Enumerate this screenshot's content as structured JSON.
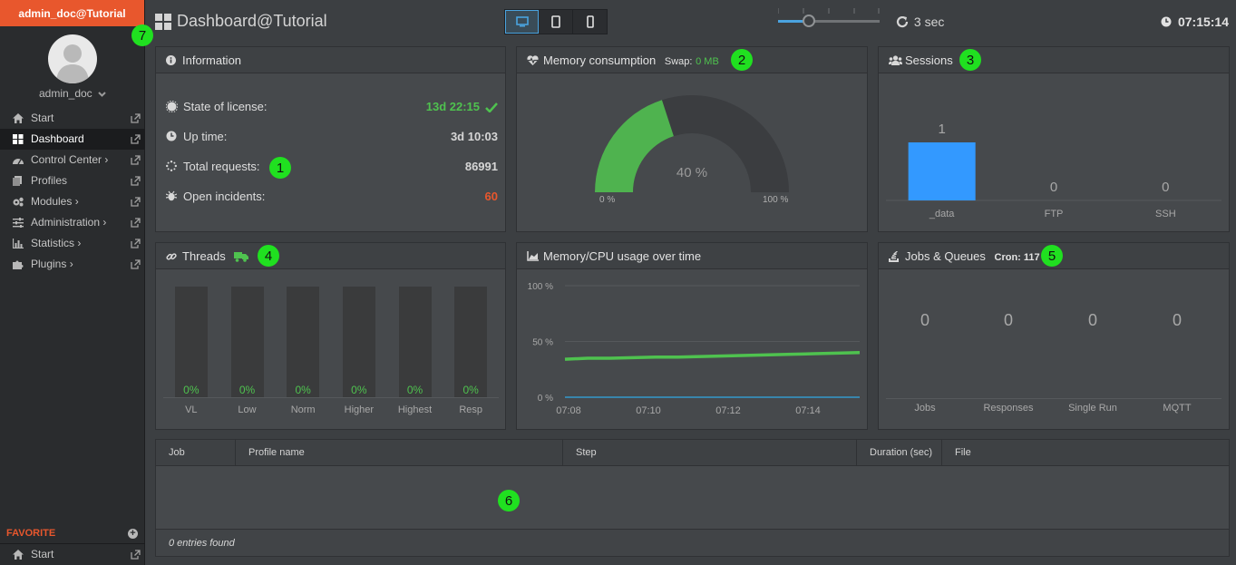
{
  "sidebar": {
    "brand": "admin_doc@Tutorial",
    "username": "admin_doc",
    "items": [
      {
        "label": "Start",
        "icon": "home-icon",
        "active": false
      },
      {
        "label": "Dashboard",
        "icon": "grid-icon",
        "active": true
      },
      {
        "label": "Control Center ›",
        "icon": "tachometer-icon",
        "active": false
      },
      {
        "label": "Profiles",
        "icon": "files-icon",
        "active": false
      },
      {
        "label": "Modules ›",
        "icon": "cogs-icon",
        "active": false
      },
      {
        "label": "Administration ›",
        "icon": "sliders-icon",
        "active": false
      },
      {
        "label": "Statistics ›",
        "icon": "bar-chart-icon",
        "active": false
      },
      {
        "label": "Plugins ›",
        "icon": "puzzle-icon",
        "active": false
      }
    ],
    "favorite_label": "FAVORITE",
    "favorite_add": "+",
    "favorite_items": [
      {
        "label": "Start",
        "icon": "home-icon"
      }
    ]
  },
  "header": {
    "title": "Dashboard@Tutorial",
    "devices": [
      "desktop-icon",
      "tablet-icon",
      "mobile-icon"
    ],
    "active_device": "desktop-icon",
    "refresh_interval": "3 sec",
    "refresh_slider_fraction": 0.3,
    "clock": "07:15:14"
  },
  "badges": {
    "b1": "1",
    "b2": "2",
    "b3": "3",
    "b4": "4",
    "b5": "5",
    "b6": "6",
    "b7": "7"
  },
  "information": {
    "title": "Information",
    "rows": [
      {
        "label": "State of license:",
        "value": "13d 22:15",
        "color": "#4fc24f",
        "check": true
      },
      {
        "label": "Up time:",
        "value": "3d 10:03",
        "color": "#d6d6d6"
      },
      {
        "label": "Total requests:",
        "value": "86991",
        "color": "#d6d6d6"
      },
      {
        "label": "Open incidents:",
        "value": "60",
        "color": "#e8572d"
      }
    ]
  },
  "memory": {
    "title": "Memory consumption",
    "swap_label": "Swap:",
    "swap_value": "0 MB",
    "percent": 40,
    "percent_label": "40 %",
    "min_label": "0 %",
    "max_label": "100 %"
  },
  "sessions": {
    "title": "Sessions",
    "chart_data": {
      "type": "bar",
      "categories": [
        "_data",
        "FTP",
        "SSH"
      ],
      "values": [
        1,
        0,
        0
      ],
      "color": "#3399ff"
    }
  },
  "threads": {
    "title": "Threads",
    "chart_data": {
      "type": "bar",
      "categories": [
        "VL",
        "Low",
        "Norm",
        "Higher",
        "Highest",
        "Resp"
      ],
      "values": [
        0,
        0,
        0,
        0,
        0,
        0
      ],
      "value_labels": [
        "0%",
        "0%",
        "0%",
        "0%",
        "0%",
        "0%"
      ]
    }
  },
  "cpu": {
    "title": "Memory/CPU usage over time",
    "chart_data": {
      "type": "line",
      "yticks": [
        "100 %",
        "50 %",
        "0 %"
      ],
      "xticks": [
        "07:08",
        "07:10",
        "07:12",
        "07:14"
      ],
      "ylim": [
        0,
        100
      ],
      "series": [
        {
          "values": [
            34,
            35,
            35,
            35.5,
            36,
            36,
            36.5,
            37,
            37.5,
            38,
            38.5,
            39,
            39.5,
            40
          ],
          "color": "#4fc24f"
        },
        {
          "values": [
            0,
            0,
            0,
            0,
            0,
            0,
            0,
            0,
            0,
            0,
            0,
            0,
            0,
            0
          ],
          "color": "#3399cc"
        }
      ]
    }
  },
  "jobs": {
    "title": "Jobs & Queues",
    "cron_label": "Cron: 117",
    "items": [
      {
        "label": "Jobs",
        "value": "0"
      },
      {
        "label": "Responses",
        "value": "0"
      },
      {
        "label": "Single Run",
        "value": "0"
      },
      {
        "label": "MQTT",
        "value": "0"
      }
    ]
  },
  "table": {
    "columns": [
      "Job",
      "Profile name",
      "Step",
      "Duration (sec)",
      "File"
    ],
    "rows": [],
    "footer": "0 entries found"
  }
}
